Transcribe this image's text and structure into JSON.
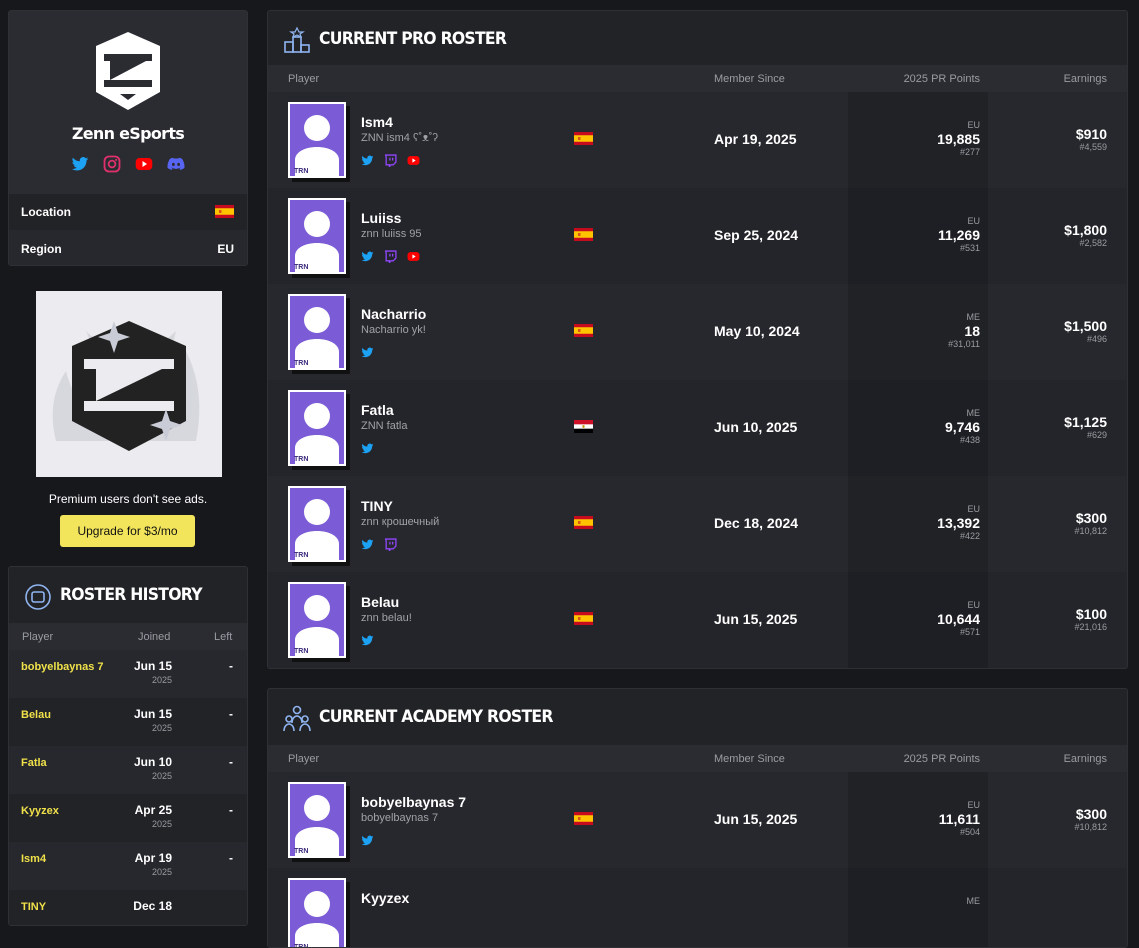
{
  "team": {
    "name": "Zenn eSports",
    "location_label": "Location",
    "location_flag": "es",
    "region_label": "Region",
    "region": "EU"
  },
  "ad": {
    "note": "Premium users don't see ads.",
    "button": "Upgrade for $3/mo"
  },
  "avatar_badge": "TRN",
  "roster_history": {
    "title": "ROSTER HISTORY",
    "columns": [
      "Player",
      "Joined",
      "Left"
    ],
    "rows": [
      {
        "player": "bobyelbaynas 7",
        "joined": "Jun 15",
        "year": "2025",
        "left": "-"
      },
      {
        "player": "Belau",
        "joined": "Jun 15",
        "year": "2025",
        "left": "-"
      },
      {
        "player": "Fatla",
        "joined": "Jun 10",
        "year": "2025",
        "left": "-"
      },
      {
        "player": "Kyyzex",
        "joined": "Apr 25",
        "year": "2025",
        "left": "-"
      },
      {
        "player": "Ism4",
        "joined": "Apr 19",
        "year": "2025",
        "left": "-"
      },
      {
        "player": "TINY",
        "joined": "Dec 18"
      }
    ]
  },
  "pro_roster": {
    "title": "CURRENT PRO ROSTER",
    "columns": [
      "Player",
      "Member Since",
      "2025 PR Points",
      "Earnings"
    ],
    "players": [
      {
        "name": "Ism4",
        "tag": "ZNN ism4 ʕ˚ᴥ˚ʔ",
        "socials": [
          "twitter",
          "twitch",
          "youtube"
        ],
        "flag": "es",
        "member_since": "Apr 19, 2025",
        "region": "EU",
        "pr_points": "19,885",
        "pr_rank": "#277",
        "earnings": "$910",
        "earnings_rank": "#4,559"
      },
      {
        "name": "Luiiss",
        "tag": "znn luiiss 95",
        "socials": [
          "twitter",
          "twitch",
          "youtube"
        ],
        "flag": "es",
        "member_since": "Sep 25, 2024",
        "region": "EU",
        "pr_points": "11,269",
        "pr_rank": "#531",
        "earnings": "$1,800",
        "earnings_rank": "#2,582"
      },
      {
        "name": "Nacharrio",
        "tag": "Nacharrio yk!",
        "socials": [
          "twitter"
        ],
        "flag": "es",
        "member_since": "May 10, 2024",
        "region": "ME",
        "pr_points": "18",
        "pr_rank": "#31,011",
        "earnings": "$1,500",
        "earnings_rank": "#496"
      },
      {
        "name": "Fatla",
        "tag": "ZNN fatla",
        "socials": [
          "twitter"
        ],
        "flag": "eg",
        "member_since": "Jun 10, 2025",
        "region": "ME",
        "pr_points": "9,746",
        "pr_rank": "#438",
        "earnings": "$1,125",
        "earnings_rank": "#629"
      },
      {
        "name": "TINY",
        "tag": "znn крошечный",
        "socials": [
          "twitter",
          "twitch"
        ],
        "flag": "es",
        "member_since": "Dec 18, 2024",
        "region": "EU",
        "pr_points": "13,392",
        "pr_rank": "#422",
        "earnings": "$300",
        "earnings_rank": "#10,812"
      },
      {
        "name": "Belau",
        "tag": "znn belau!",
        "socials": [
          "twitter"
        ],
        "flag": "es",
        "member_since": "Jun 15, 2025",
        "region": "EU",
        "pr_points": "10,644",
        "pr_rank": "#571",
        "earnings": "$100",
        "earnings_rank": "#21,016"
      }
    ]
  },
  "academy_roster": {
    "title": "CURRENT ACADEMY ROSTER",
    "columns": [
      "Player",
      "Member Since",
      "2025 PR Points",
      "Earnings"
    ],
    "players": [
      {
        "name": "bobyelbaynas 7",
        "tag": "bobyelbaynas 7",
        "socials": [
          "twitter"
        ],
        "flag": "es",
        "member_since": "Jun 15, 2025",
        "region": "EU",
        "pr_points": "11,611",
        "pr_rank": "#504",
        "earnings": "$300",
        "earnings_rank": "#10,812"
      },
      {
        "name": "Kyyzex",
        "region": "ME"
      }
    ]
  }
}
